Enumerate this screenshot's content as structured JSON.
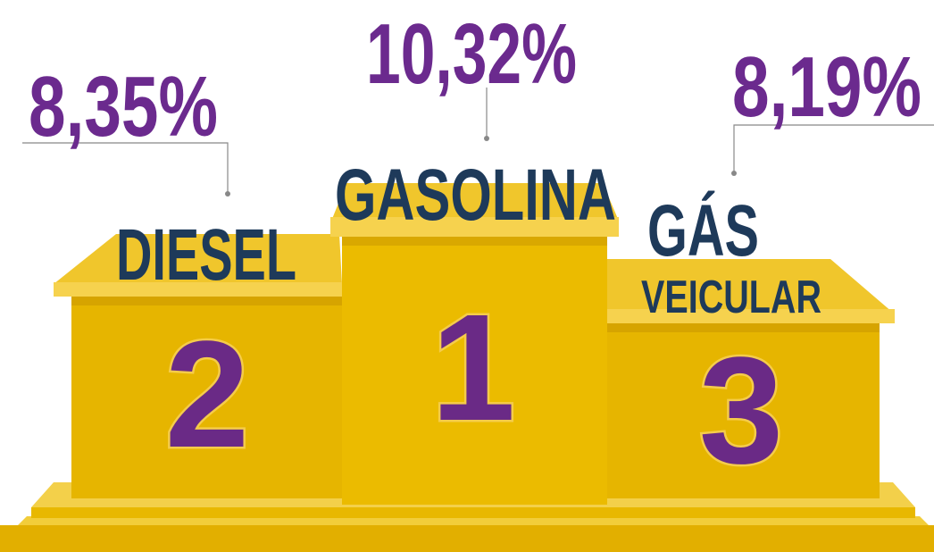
{
  "podium": [
    {
      "rank": "2",
      "label": "DIESEL",
      "value": "8,35%"
    },
    {
      "rank": "1",
      "label": "GASOLINA",
      "value": "10,32%"
    },
    {
      "rank": "3",
      "label": "GÁS",
      "sublabel": "VEICULAR",
      "value": "8,19%"
    }
  ]
}
